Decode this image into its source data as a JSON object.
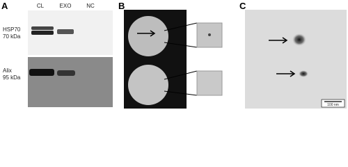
{
  "panels": [
    {
      "label": "A",
      "lanes": [
        "CL",
        "EXO",
        "NC"
      ],
      "blots": [
        {
          "protein": "HSP70",
          "size": "70 kDa"
        },
        {
          "protein": "Alix",
          "size": "95 kDa"
        }
      ]
    },
    {
      "label": "B"
    },
    {
      "label": "C",
      "scale_bar": "100 nm"
    }
  ]
}
